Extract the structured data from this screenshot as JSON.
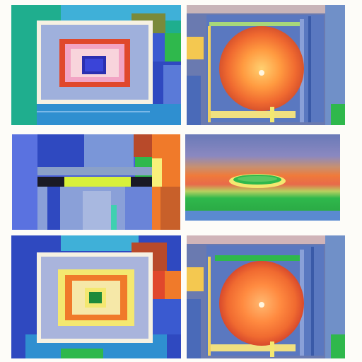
{
  "palette": {
    "teal": "#1fae8e",
    "cyan": "#3fb0d8",
    "periwinkle": "#a9b4dc",
    "cobalt": "#2f49c0",
    "navy": "#1a2f9a",
    "green": "#2fb84c",
    "olive": "#7a8a3a",
    "orange": "#f07a2a",
    "red": "#e0482c",
    "rust": "#b84a2a",
    "pink": "#f2a4c4",
    "yellow": "#f4e870",
    "lime": "#d8f03a",
    "cream": "#f6f1e2",
    "steel": "#5a7ab0",
    "sunset": "#ff9a40"
  },
  "tiles": [
    {
      "name": "nested-squares-blue-core",
      "style": "colour-field abstract"
    },
    {
      "name": "orange-orb-in-grid",
      "style": "colour-field abstract"
    },
    {
      "name": "vertical-bands-composition",
      "style": "colour-field abstract"
    },
    {
      "name": "green-ring-horizon",
      "style": "landscape abstract"
    },
    {
      "name": "nested-squares-green-core",
      "style": "colour-field abstract"
    },
    {
      "name": "orange-orb-in-grid-variant",
      "style": "colour-field abstract"
    }
  ]
}
